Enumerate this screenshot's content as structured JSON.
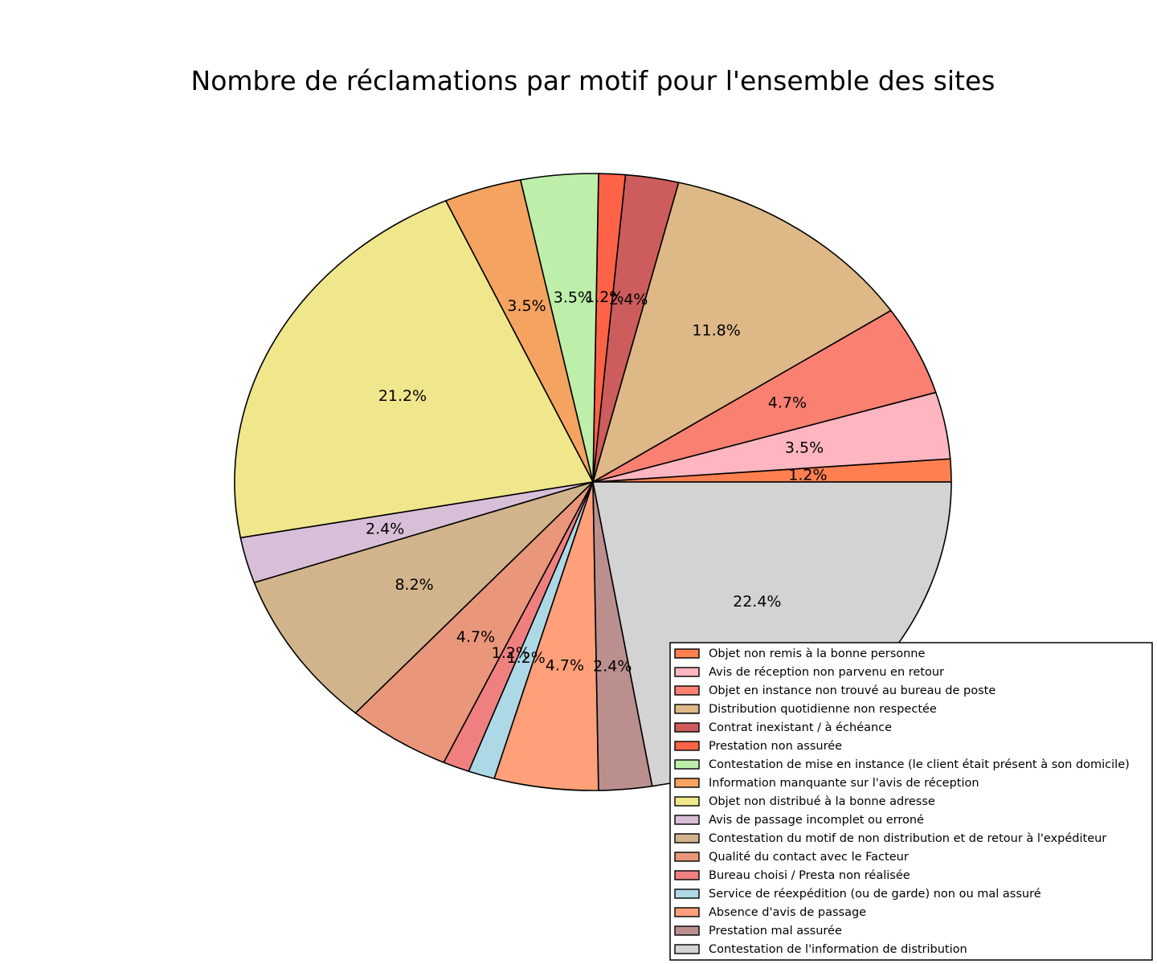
{
  "chart_data": {
    "type": "pie",
    "title": "Nombre de réclamations par motif pour l'ensemble des sites",
    "legend_position": "lower-right",
    "slices": [
      {
        "label": "Objet non remis à la bonne personne",
        "value": 1.2,
        "color": "#FF7F50"
      },
      {
        "label": "Avis de réception non parvenu en retour",
        "value": 3.5,
        "color": "#FFB6C1"
      },
      {
        "label": "Objet en instance non trouvé au bureau de poste",
        "value": 4.7,
        "color": "#FA8072"
      },
      {
        "label": "Distribution quotidienne non respectée",
        "value": 11.8,
        "color": "#DEB887"
      },
      {
        "label": "Contrat inexistant / à échéance",
        "value": 2.4,
        "color": "#CD5C5C"
      },
      {
        "label": "Prestation non assurée",
        "value": 1.2,
        "color": "#FF6347"
      },
      {
        "label": "Contestation de mise en instance (le client était présent à son domicile)",
        "value": 3.5,
        "color": "#BDEEAA"
      },
      {
        "label": "Information manquante sur l'avis de réception",
        "value": 3.5,
        "color": "#F4A460"
      },
      {
        "label": "Objet non distribué à la bonne adresse",
        "value": 21.2,
        "color": "#F0E68C"
      },
      {
        "label": "Avis de passage incomplet ou erroné",
        "value": 2.4,
        "color": "#D8BFD8"
      },
      {
        "label": "Contestation du motif de non distribution et de retour à l'expéditeur",
        "value": 8.2,
        "color": "#D2B48C"
      },
      {
        "label": "Qualité du contact avec le Facteur",
        "value": 4.7,
        "color": "#E9967A"
      },
      {
        "label": "Bureau choisi / Presta non réalisée",
        "value": 1.2,
        "color": "#F08080"
      },
      {
        "label": "Service de réexpédition (ou de garde) non ou mal assuré",
        "value": 1.2,
        "color": "#ADD8E6"
      },
      {
        "label": "Absence d'avis de passage",
        "value": 4.7,
        "color": "#FFA07A"
      },
      {
        "label": "Prestation mal assurée",
        "value": 2.4,
        "color": "#BC8F8F"
      },
      {
        "label": "Contestation de l'information de distribution",
        "value": 22.4,
        "color": "#D3D3D3"
      }
    ],
    "percent_labels": [
      "1.2%",
      "3.5%",
      "4.7%",
      "11.8%",
      "2.4%",
      "1.2%",
      "3.5%",
      "3.5%",
      "21.2%",
      "2.4%",
      "8.2%",
      "4.7%",
      "1.2%",
      "1.2%",
      "4.7%",
      "2.4%",
      "22.4%"
    ]
  }
}
